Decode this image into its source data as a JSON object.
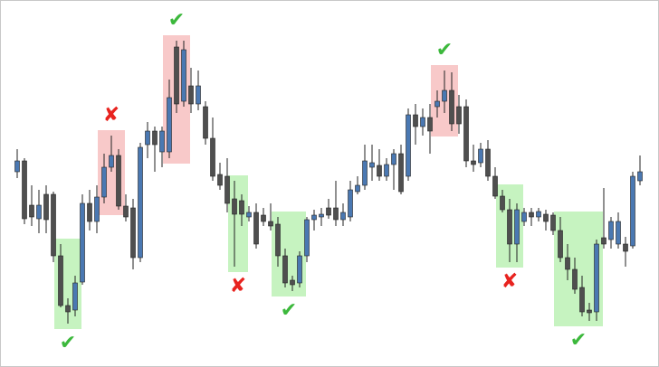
{
  "chart_data": {
    "type": "candlestick",
    "ylim": [
      0,
      400
    ],
    "up_color": "#4a78b2",
    "down_color": "#4f4f4f",
    "wick_color": "#222222",
    "open": [
      213,
      225,
      176,
      161,
      188,
      188,
      120,
      65,
      60,
      91,
      178,
      158,
      185,
      218,
      231,
      175,
      173,
      118,
      243,
      258,
      235,
      235,
      351,
      291,
      308,
      288,
      285,
      250,
      210,
      208,
      183,
      181,
      163,
      168,
      165,
      158,
      155,
      120,
      93,
      90,
      120,
      160,
      163,
      173,
      173,
      160,
      163,
      191,
      198,
      218,
      220,
      208,
      221,
      233,
      208,
      276,
      263,
      273,
      285,
      291,
      303,
      285,
      285,
      225,
      223,
      238,
      208,
      186,
      171,
      133,
      158,
      168,
      163,
      166,
      165,
      148,
      118,
      105,
      85,
      60,
      58,
      140,
      138,
      133,
      133,
      131,
      203
    ],
    "high": [
      238,
      228,
      198,
      193,
      198,
      191,
      133,
      73,
      98,
      188,
      193,
      198,
      233,
      253,
      238,
      188,
      183,
      245,
      268,
      263,
      263,
      315,
      358,
      358,
      328,
      325,
      291,
      273,
      223,
      228,
      203,
      188,
      175,
      178,
      173,
      178,
      163,
      128,
      98,
      125,
      163,
      171,
      173,
      183,
      203,
      178,
      203,
      208,
      243,
      243,
      238,
      228,
      238,
      243,
      283,
      288,
      283,
      288,
      303,
      325,
      323,
      298,
      293,
      243,
      245,
      248,
      218,
      193,
      183,
      178,
      173,
      173,
      173,
      171,
      168,
      163,
      133,
      118,
      98,
      68,
      138,
      195,
      163,
      168,
      141,
      213,
      231
    ],
    "low": [
      206,
      155,
      153,
      145,
      145,
      113,
      63,
      45,
      53,
      88,
      148,
      145,
      178,
      213,
      171,
      158,
      105,
      113,
      228,
      213,
      218,
      228,
      278,
      285,
      278,
      281,
      243,
      203,
      193,
      168,
      108,
      153,
      158,
      128,
      153,
      148,
      108,
      85,
      81,
      85,
      113,
      148,
      153,
      161,
      153,
      153,
      158,
      188,
      193,
      203,
      203,
      203,
      193,
      188,
      203,
      243,
      253,
      233,
      273,
      278,
      258,
      255,
      218,
      213,
      218,
      203,
      183,
      168,
      113,
      113,
      153,
      153,
      158,
      148,
      143,
      113,
      93,
      78,
      53,
      48,
      48,
      128,
      128,
      128,
      108,
      128,
      198
    ],
    "close": [
      225,
      161,
      163,
      176,
      160,
      120,
      65,
      58,
      90,
      178,
      158,
      185,
      218,
      231,
      175,
      163,
      118,
      240,
      258,
      243,
      258,
      295,
      288,
      348,
      288,
      308,
      250,
      208,
      198,
      178,
      166,
      166,
      168,
      133,
      158,
      153,
      120,
      90,
      88,
      120,
      160,
      165,
      166,
      165,
      160,
      168,
      193,
      198,
      225,
      223,
      208,
      221,
      233,
      191,
      276,
      263,
      273,
      258,
      291,
      303,
      266,
      266,
      225,
      221,
      238,
      208,
      186,
      171,
      133,
      171,
      168,
      163,
      169,
      158,
      148,
      118,
      105,
      83,
      58,
      57,
      133,
      133,
      158,
      158,
      125,
      208,
      213
    ],
    "zones": [
      {
        "start": 6,
        "end": 8,
        "color": "#c6f3c0",
        "marker": "✔",
        "marker_color": "#3cb83c"
      },
      {
        "start": 12,
        "end": 14,
        "color": "#f8c9c9",
        "marker": "✘",
        "marker_color": "#e8231f"
      },
      {
        "start": 21,
        "end": 23,
        "color": "#f8c9c9",
        "marker": "✔",
        "marker_color": "#3cb83c"
      },
      {
        "start": 30,
        "end": 31,
        "color": "#c6f3c0",
        "marker": "✘",
        "marker_color": "#e8231f"
      },
      {
        "start": 36,
        "end": 39,
        "color": "#c6f3c0",
        "marker": "✔",
        "marker_color": "#3cb83c"
      },
      {
        "start": 58,
        "end": 60,
        "color": "#f8c9c9",
        "marker": "✔",
        "marker_color": "#3cb83c"
      },
      {
        "start": 67,
        "end": 69,
        "color": "#c6f3c0",
        "marker": "✘",
        "marker_color": "#e8231f"
      },
      {
        "start": 75,
        "end": 80,
        "color": "#c6f3c0",
        "marker": "✔",
        "marker_color": "#3cb83c"
      }
    ]
  }
}
